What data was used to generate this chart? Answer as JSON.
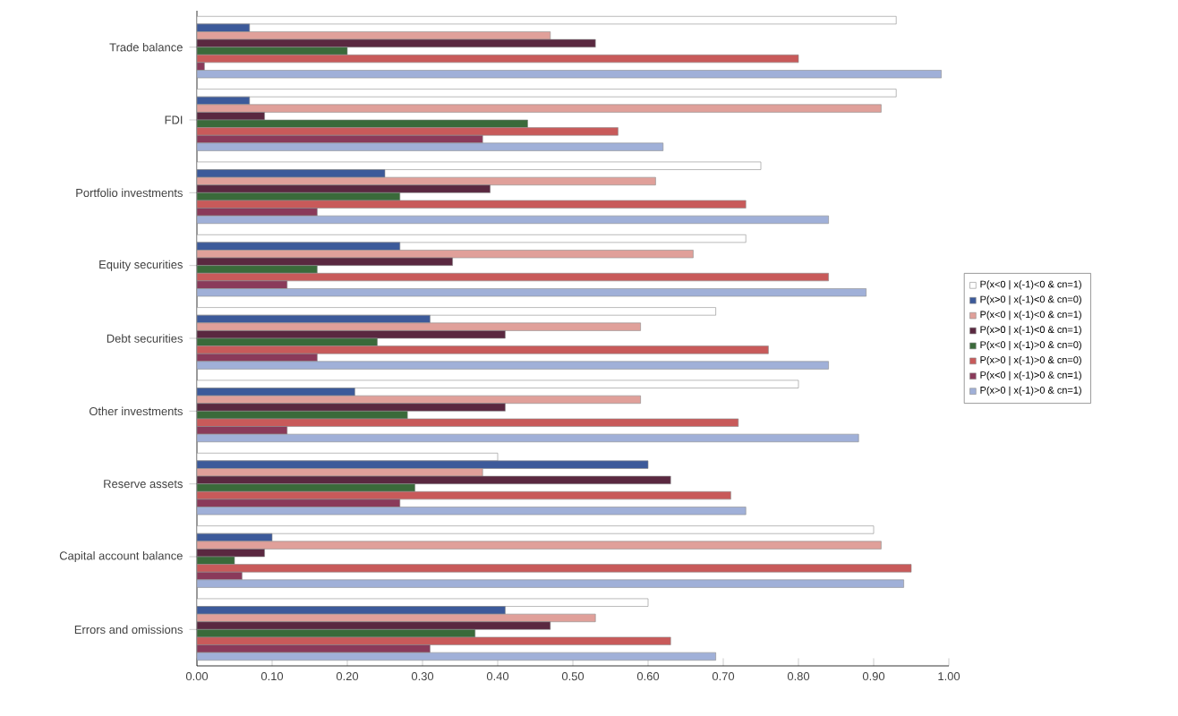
{
  "chart_data": {
    "type": "bar",
    "orientation": "horizontal",
    "categories": [
      "Trade balance",
      "FDI",
      "Portfolio investments",
      "Equity securities",
      "Debt securities",
      "Other investments",
      "Reserve assets",
      "Capital account balance",
      "Errors and omissions"
    ],
    "series": [
      {
        "name": "P(x<0 | x(-1)<0 & cn=1)",
        "color": "#ffffff",
        "values": [
          0.93,
          0.93,
          0.75,
          0.73,
          0.69,
          0.8,
          0.4,
          0.9,
          0.6
        ]
      },
      {
        "name": "P(x>0 | x(-1)<0 & cn=0)",
        "color": "#3c5a9a",
        "values": [
          0.07,
          0.07,
          0.25,
          0.27,
          0.31,
          0.21,
          0.6,
          0.1,
          0.41
        ]
      },
      {
        "name": "P(x<0 | x(-1)<0 & cn=1)",
        "color": "#e0a09a",
        "values": [
          0.47,
          0.91,
          0.61,
          0.66,
          0.59,
          0.59,
          0.38,
          0.91,
          0.53
        ]
      },
      {
        "name": "P(x>0 | x(-1)<0 & cn=1)",
        "color": "#5a2840",
        "values": [
          0.53,
          0.09,
          0.39,
          0.34,
          0.41,
          0.41,
          0.63,
          0.09,
          0.47
        ]
      },
      {
        "name": "P(x<0 | x(-1)>0 & cn=0)",
        "color": "#3a6a3a",
        "values": [
          0.2,
          0.44,
          0.27,
          0.16,
          0.24,
          0.28,
          0.29,
          0.05,
          0.37
        ]
      },
      {
        "name": "P(x>0 | x(-1)>0 & cn=0)",
        "color": "#c85a5a",
        "values": [
          0.8,
          0.56,
          0.73,
          0.84,
          0.76,
          0.72,
          0.71,
          0.95,
          0.63
        ]
      },
      {
        "name": "P(x<0 | x(-1)>0 & cn=1)",
        "color": "#8a3a5a",
        "values": [
          0.01,
          0.38,
          0.16,
          0.12,
          0.16,
          0.12,
          0.27,
          0.06,
          0.31
        ]
      },
      {
        "name": "P(x>0 | x(-1)>0 & cn=1)",
        "color": "#a0b0d8",
        "values": [
          0.99,
          0.62,
          0.84,
          0.89,
          0.84,
          0.88,
          0.73,
          0.94,
          0.69
        ]
      }
    ],
    "xlim": [
      0,
      1
    ],
    "xticks": [
      {
        "value": 0,
        "label": "0.00"
      },
      {
        "value": 0.1,
        "label": "0.10"
      },
      {
        "value": 0.2,
        "label": "0.20"
      },
      {
        "value": 0.3,
        "label": "0.30"
      },
      {
        "value": 0.4,
        "label": "0.40"
      },
      {
        "value": 0.5,
        "label": "0.50"
      },
      {
        "value": 0.6,
        "label": "0.60"
      },
      {
        "value": 0.7,
        "label": "0.70"
      },
      {
        "value": 0.8,
        "label": "0.80"
      },
      {
        "value": 0.9,
        "label": "0.90"
      },
      {
        "value": 1,
        "label": "1.00"
      }
    ],
    "grid": false,
    "legend": "right"
  }
}
